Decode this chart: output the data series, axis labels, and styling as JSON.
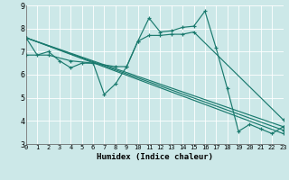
{
  "xlabel": "Humidex (Indice chaleur)",
  "ylabel": "",
  "xlim": [
    0,
    23
  ],
  "ylim": [
    3,
    9
  ],
  "yticks": [
    3,
    4,
    5,
    6,
    7,
    8,
    9
  ],
  "xticks": [
    0,
    1,
    2,
    3,
    4,
    5,
    6,
    7,
    8,
    9,
    10,
    11,
    12,
    13,
    14,
    15,
    16,
    17,
    18,
    19,
    20,
    21,
    22,
    23
  ],
  "background_color": "#cce8e8",
  "plot_bg_color": "#cce8e8",
  "line_color": "#1a7a6e",
  "grid_color": "#b0d8d8",
  "lines": [
    {
      "x": [
        0,
        1,
        2,
        3,
        4,
        5,
        6,
        7,
        8,
        9,
        10,
        11,
        12,
        13,
        14,
        15,
        16,
        17,
        18,
        19,
        20,
        21,
        22,
        23
      ],
      "y": [
        7.6,
        6.85,
        7.0,
        6.6,
        6.3,
        6.5,
        6.5,
        5.15,
        5.6,
        6.35,
        7.45,
        8.45,
        7.85,
        7.9,
        8.05,
        8.1,
        8.75,
        7.15,
        5.4,
        3.55,
        3.85,
        3.65,
        3.45,
        3.75
      ]
    },
    {
      "x": [
        0,
        2,
        4,
        6,
        8,
        9,
        10,
        11,
        12,
        13,
        14,
        15,
        23
      ],
      "y": [
        6.85,
        6.85,
        6.6,
        6.5,
        6.35,
        6.35,
        7.45,
        7.7,
        7.7,
        7.75,
        7.75,
        7.85,
        4.05
      ]
    },
    {
      "x": [
        0,
        23
      ],
      "y": [
        7.6,
        3.75
      ]
    },
    {
      "x": [
        0,
        23
      ],
      "y": [
        7.6,
        3.45
      ]
    },
    {
      "x": [
        0,
        23
      ],
      "y": [
        7.6,
        3.6
      ]
    }
  ]
}
